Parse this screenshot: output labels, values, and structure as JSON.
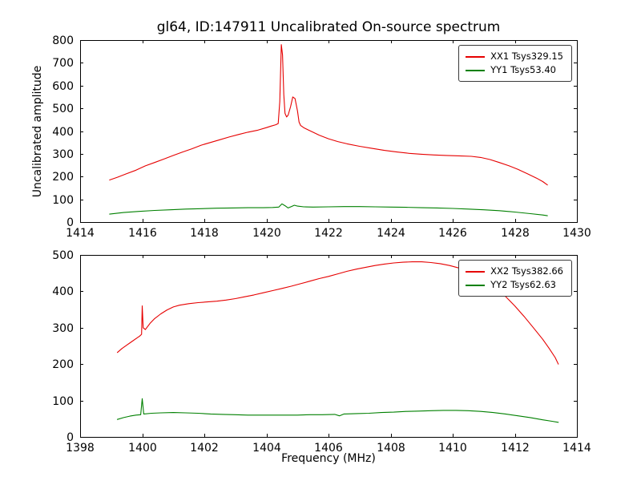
{
  "chart_data": [
    {
      "id": "top",
      "type": "line",
      "title": "gl64, ID:147911 Uncalibrated On-source spectrum",
      "xlabel": "",
      "ylabel": "Uncalibrated amplitude",
      "xlim": [
        1414,
        1430
      ],
      "ylim": [
        0,
        800
      ],
      "xticks": [
        1414,
        1416,
        1418,
        1420,
        1422,
        1424,
        1426,
        1428,
        1430
      ],
      "yticks": [
        0,
        100,
        200,
        300,
        400,
        500,
        600,
        700,
        800
      ],
      "grid": false,
      "legend_position": "upper right",
      "series": [
        {
          "name": "XX1 Tsys329.15",
          "color": "#e60000",
          "points": [
            [
              1414.95,
              185
            ],
            [
              1415.2,
              197
            ],
            [
              1415.5,
              213
            ],
            [
              1415.8,
              228
            ],
            [
              1416.1,
              247
            ],
            [
              1416.4,
              262
            ],
            [
              1416.7,
              277
            ],
            [
              1417.0,
              293
            ],
            [
              1417.3,
              308
            ],
            [
              1417.6,
              322
            ],
            [
              1417.9,
              338
            ],
            [
              1418.2,
              350
            ],
            [
              1418.5,
              362
            ],
            [
              1418.8,
              374
            ],
            [
              1419.1,
              385
            ],
            [
              1419.4,
              395
            ],
            [
              1419.7,
              403
            ],
            [
              1420.0,
              415
            ],
            [
              1420.15,
              422
            ],
            [
              1420.3,
              428
            ],
            [
              1420.38,
              433
            ],
            [
              1420.43,
              530
            ],
            [
              1420.48,
              780
            ],
            [
              1420.52,
              735
            ],
            [
              1420.56,
              560
            ],
            [
              1420.6,
              478
            ],
            [
              1420.65,
              462
            ],
            [
              1420.7,
              470
            ],
            [
              1420.78,
              508
            ],
            [
              1420.85,
              550
            ],
            [
              1420.92,
              543
            ],
            [
              1421.0,
              488
            ],
            [
              1421.05,
              440
            ],
            [
              1421.1,
              425
            ],
            [
              1421.2,
              415
            ],
            [
              1421.35,
              405
            ],
            [
              1421.5,
              395
            ],
            [
              1421.7,
              382
            ],
            [
              1422.0,
              366
            ],
            [
              1422.3,
              354
            ],
            [
              1422.6,
              344
            ],
            [
              1423.0,
              333
            ],
            [
              1423.4,
              324
            ],
            [
              1423.8,
              315
            ],
            [
              1424.2,
              308
            ],
            [
              1424.6,
              302
            ],
            [
              1425.0,
              298
            ],
            [
              1425.4,
              295
            ],
            [
              1425.8,
              293
            ],
            [
              1426.2,
              291
            ],
            [
              1426.6,
              289
            ],
            [
              1426.9,
              284
            ],
            [
              1427.2,
              275
            ],
            [
              1427.5,
              262
            ],
            [
              1427.8,
              248
            ],
            [
              1428.1,
              232
            ],
            [
              1428.4,
              213
            ],
            [
              1428.7,
              193
            ],
            [
              1428.9,
              178
            ],
            [
              1429.05,
              163
            ]
          ]
        },
        {
          "name": "YY1 Tsys53.40",
          "color": "#008000",
          "points": [
            [
              1414.95,
              35
            ],
            [
              1415.4,
              42
            ],
            [
              1415.9,
              47
            ],
            [
              1416.4,
              51
            ],
            [
              1416.9,
              54
            ],
            [
              1417.4,
              57
            ],
            [
              1417.9,
              59
            ],
            [
              1418.4,
              61
            ],
            [
              1418.9,
              62
            ],
            [
              1419.4,
              63
            ],
            [
              1419.9,
              63
            ],
            [
              1420.2,
              64
            ],
            [
              1420.4,
              66
            ],
            [
              1420.5,
              80
            ],
            [
              1420.6,
              72
            ],
            [
              1420.7,
              62
            ],
            [
              1420.8,
              68
            ],
            [
              1420.9,
              74
            ],
            [
              1421.0,
              70
            ],
            [
              1421.2,
              67
            ],
            [
              1421.5,
              66
            ],
            [
              1422.0,
              67
            ],
            [
              1422.5,
              68
            ],
            [
              1423.0,
              68
            ],
            [
              1423.5,
              67
            ],
            [
              1424.0,
              66
            ],
            [
              1424.5,
              65
            ],
            [
              1425.0,
              63
            ],
            [
              1425.5,
              62
            ],
            [
              1426.0,
              60
            ],
            [
              1426.5,
              57
            ],
            [
              1427.0,
              54
            ],
            [
              1427.5,
              50
            ],
            [
              1428.0,
              44
            ],
            [
              1428.5,
              37
            ],
            [
              1428.9,
              31
            ],
            [
              1429.05,
              28
            ]
          ]
        }
      ]
    },
    {
      "id": "bottom",
      "type": "line",
      "title": "",
      "xlabel": "Frequency (MHz)",
      "ylabel": "",
      "xlim": [
        1398,
        1414
      ],
      "ylim": [
        0,
        500
      ],
      "xticks": [
        1398,
        1400,
        1402,
        1404,
        1406,
        1408,
        1410,
        1412,
        1414
      ],
      "yticks": [
        0,
        100,
        200,
        300,
        400,
        500
      ],
      "grid": false,
      "legend_position": "upper right",
      "series": [
        {
          "name": "XX2 Tsys382.66",
          "color": "#e60000",
          "points": [
            [
              1399.2,
              232
            ],
            [
              1399.35,
              243
            ],
            [
              1399.5,
              252
            ],
            [
              1399.65,
              261
            ],
            [
              1399.8,
              270
            ],
            [
              1399.92,
              277
            ],
            [
              1399.98,
              282
            ],
            [
              1400.0,
              360
            ],
            [
              1400.03,
              300
            ],
            [
              1400.1,
              295
            ],
            [
              1400.25,
              312
            ],
            [
              1400.4,
              325
            ],
            [
              1400.6,
              338
            ],
            [
              1400.8,
              349
            ],
            [
              1401.0,
              357
            ],
            [
              1401.2,
              362
            ],
            [
              1401.5,
              366
            ],
            [
              1401.8,
              369
            ],
            [
              1402.1,
              371
            ],
            [
              1402.4,
              373
            ],
            [
              1402.7,
              376
            ],
            [
              1403.0,
              380
            ],
            [
              1403.3,
              385
            ],
            [
              1403.6,
              390
            ],
            [
              1403.9,
              396
            ],
            [
              1404.2,
              402
            ],
            [
              1404.5,
              408
            ],
            [
              1404.8,
              414
            ],
            [
              1405.1,
              421
            ],
            [
              1405.4,
              428
            ],
            [
              1405.7,
              435
            ],
            [
              1406.0,
              441
            ],
            [
              1406.3,
              448
            ],
            [
              1406.6,
              455
            ],
            [
              1406.9,
              461
            ],
            [
              1407.2,
              466
            ],
            [
              1407.5,
              471
            ],
            [
              1407.8,
              475
            ],
            [
              1408.1,
              478
            ],
            [
              1408.4,
              480
            ],
            [
              1408.7,
              481
            ],
            [
              1409.0,
              481
            ],
            [
              1409.3,
              479
            ],
            [
              1409.6,
              476
            ],
            [
              1409.9,
              471
            ],
            [
              1410.2,
              464
            ],
            [
              1410.5,
              455
            ],
            [
              1410.8,
              443
            ],
            [
              1411.1,
              428
            ],
            [
              1411.4,
              409
            ],
            [
              1411.7,
              386
            ],
            [
              1412.0,
              360
            ],
            [
              1412.3,
              331
            ],
            [
              1412.6,
              300
            ],
            [
              1412.9,
              268
            ],
            [
              1413.1,
              244
            ],
            [
              1413.3,
              218
            ],
            [
              1413.4,
              200
            ]
          ]
        },
        {
          "name": "YY2 Tsys62.63",
          "color": "#008000",
          "points": [
            [
              1399.2,
              48
            ],
            [
              1399.4,
              53
            ],
            [
              1399.6,
              57
            ],
            [
              1399.8,
              60
            ],
            [
              1399.95,
              61
            ],
            [
              1400.0,
              105
            ],
            [
              1400.05,
              63
            ],
            [
              1400.3,
              65
            ],
            [
              1400.6,
              66
            ],
            [
              1401.0,
              67
            ],
            [
              1401.4,
              66
            ],
            [
              1401.8,
              65
            ],
            [
              1402.2,
              63
            ],
            [
              1402.6,
              62
            ],
            [
              1403.0,
              61
            ],
            [
              1403.4,
              60
            ],
            [
              1403.8,
              60
            ],
            [
              1404.2,
              60
            ],
            [
              1404.6,
              60
            ],
            [
              1405.0,
              60
            ],
            [
              1405.4,
              61
            ],
            [
              1405.8,
              61
            ],
            [
              1406.2,
              62
            ],
            [
              1406.35,
              58
            ],
            [
              1406.5,
              63
            ],
            [
              1406.9,
              64
            ],
            [
              1407.3,
              65
            ],
            [
              1407.7,
              67
            ],
            [
              1408.1,
              68
            ],
            [
              1408.5,
              70
            ],
            [
              1408.9,
              71
            ],
            [
              1409.3,
              72
            ],
            [
              1409.7,
              73
            ],
            [
              1410.1,
              73
            ],
            [
              1410.5,
              72
            ],
            [
              1410.9,
              70
            ],
            [
              1411.3,
              67
            ],
            [
              1411.7,
              63
            ],
            [
              1412.1,
              58
            ],
            [
              1412.5,
              53
            ],
            [
              1412.9,
              47
            ],
            [
              1413.2,
              43
            ],
            [
              1413.4,
              40
            ]
          ]
        }
      ]
    }
  ]
}
